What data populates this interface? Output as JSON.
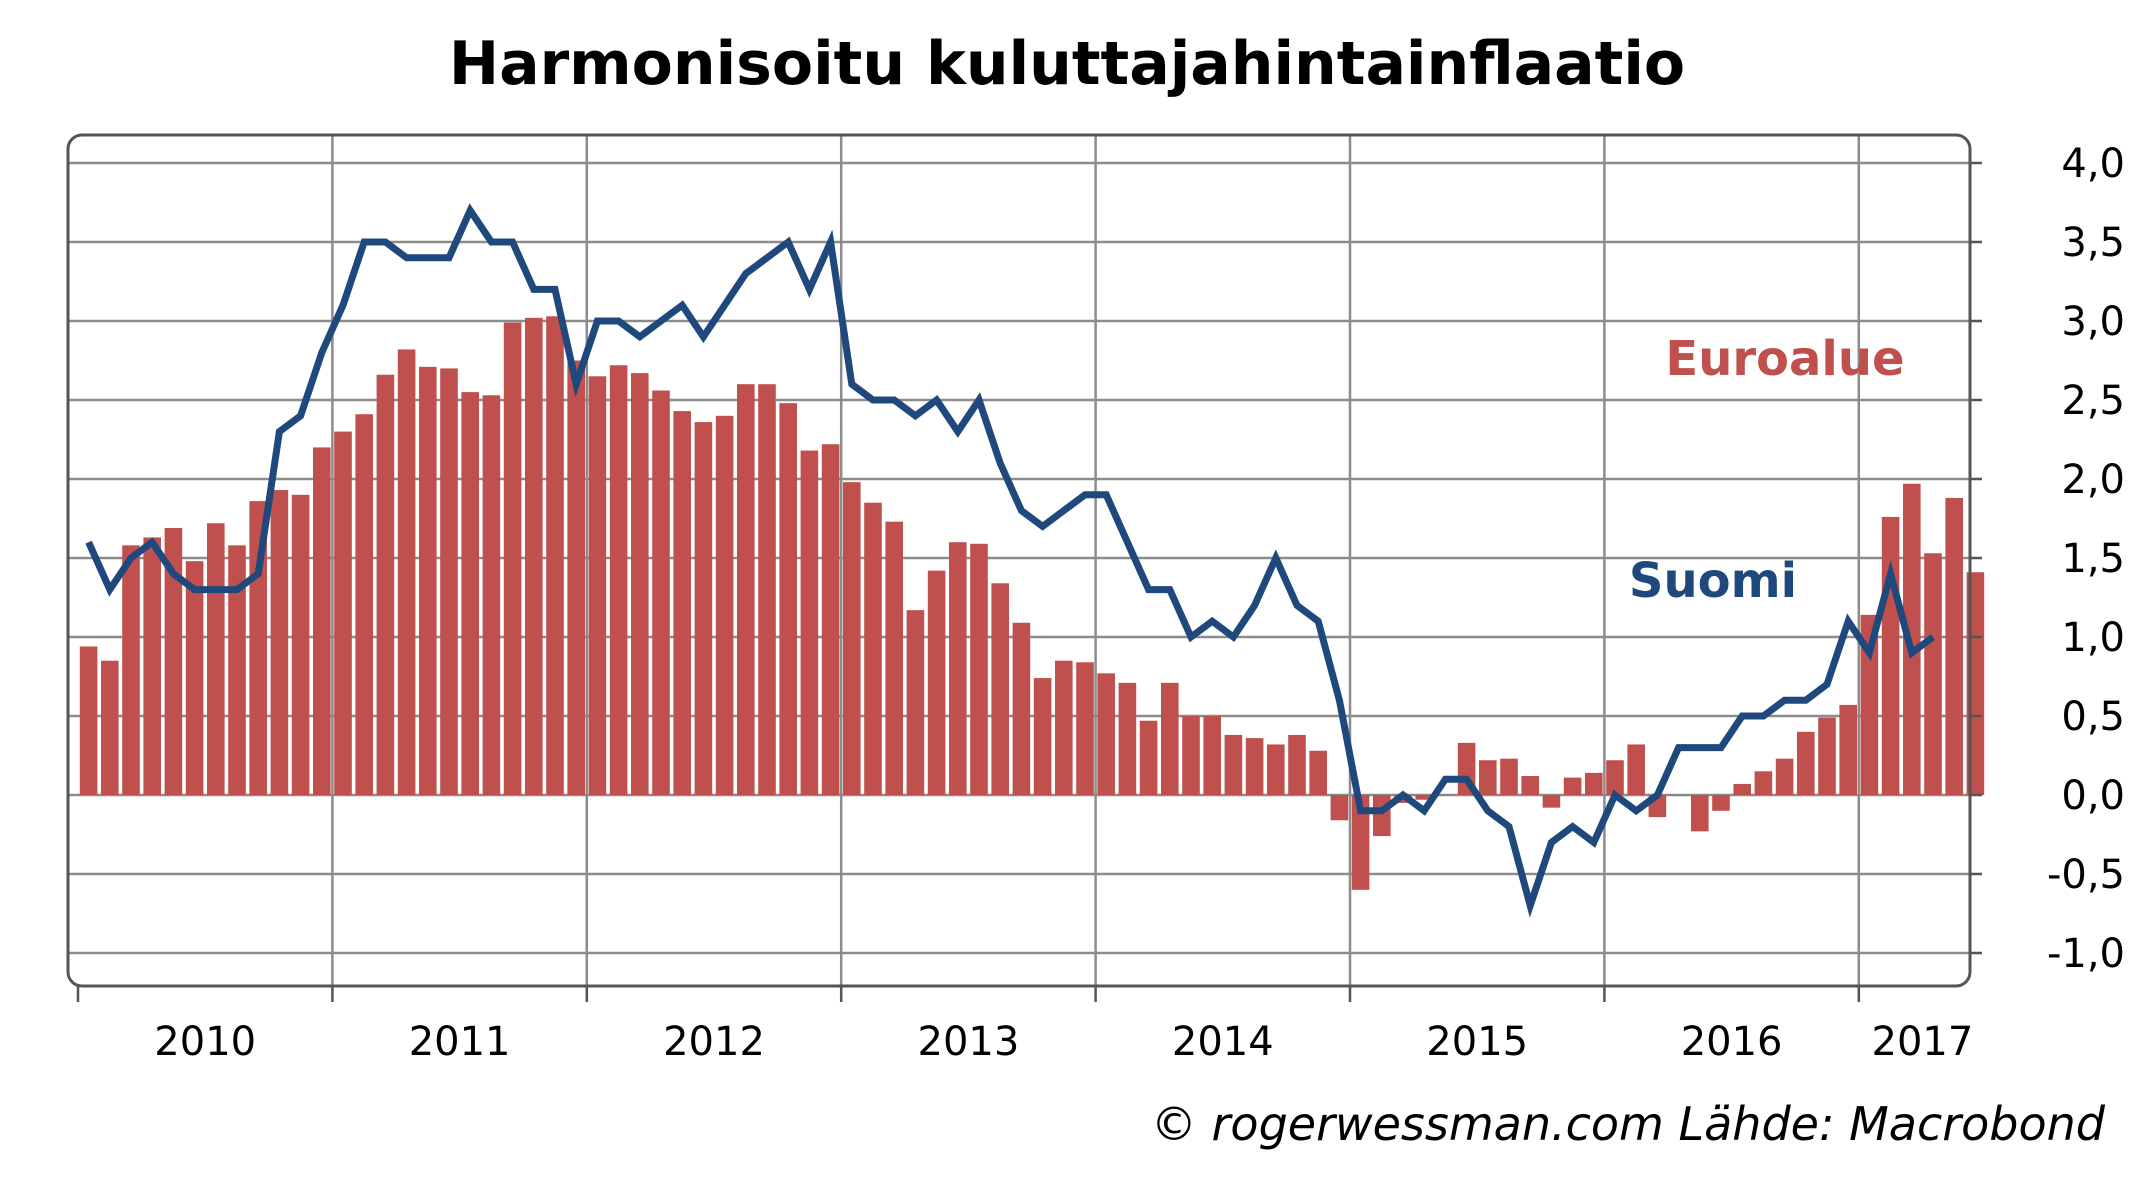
{
  "chart_data": {
    "type": "bar+line",
    "title": "Harmonisoitu kuluttajahintainflaatio",
    "credit": "© rogerwessman.com Lähde: Macrobond",
    "start": {
      "year": 2010,
      "month": 1
    },
    "year_labels": [
      "2010",
      "2011",
      "2012",
      "2013",
      "2014",
      "2015",
      "2016",
      "2017"
    ],
    "ylim": [
      -1.0,
      4.0
    ],
    "yticks": [
      {
        "value": 4.0,
        "label": "4,0"
      },
      {
        "value": 3.5,
        "label": "3,5"
      },
      {
        "value": 3.0,
        "label": "3,0"
      },
      {
        "value": 2.5,
        "label": "2,5"
      },
      {
        "value": 2.0,
        "label": "2,0"
      },
      {
        "value": 1.5,
        "label": "1,5"
      },
      {
        "value": 1.0,
        "label": "1,0"
      },
      {
        "value": 0.5,
        "label": "0,5"
      },
      {
        "value": 0.0,
        "label": "0,0"
      },
      {
        "value": -0.5,
        "label": "-0,5"
      },
      {
        "value": -1.0,
        "label": "-1,0"
      }
    ],
    "grid": true,
    "series": [
      {
        "name": "Euroalue",
        "type": "bar",
        "color": "#c0504d",
        "values": [
          0.94,
          0.85,
          1.58,
          1.63,
          1.69,
          1.48,
          1.72,
          1.58,
          1.86,
          1.93,
          1.9,
          2.2,
          2.3,
          2.41,
          2.66,
          2.82,
          2.71,
          2.7,
          2.55,
          2.53,
          2.99,
          3.02,
          3.03,
          2.75,
          2.65,
          2.72,
          2.67,
          2.56,
          2.43,
          2.36,
          2.4,
          2.6,
          2.6,
          2.48,
          2.18,
          2.22,
          1.98,
          1.85,
          1.73,
          1.17,
          1.42,
          1.6,
          1.59,
          1.34,
          1.09,
          0.74,
          0.85,
          0.84,
          0.77,
          0.71,
          0.47,
          0.71,
          0.5,
          0.5,
          0.38,
          0.36,
          0.32,
          0.38,
          0.28,
          -0.16,
          -0.6,
          -0.26,
          -0.05,
          -0.03,
          0.0,
          0.33,
          0.22,
          0.23,
          0.12,
          -0.08,
          0.11,
          0.14,
          0.22,
          0.32,
          -0.14,
          0.0,
          -0.23,
          -0.1,
          0.07,
          0.15,
          0.23,
          0.4,
          0.49,
          0.57,
          1.14,
          1.76,
          1.97,
          1.53,
          1.88,
          1.41
        ]
      },
      {
        "name": "Suomi",
        "type": "line",
        "color": "#1f497d",
        "values": [
          1.6,
          1.3,
          1.5,
          1.6,
          1.4,
          1.3,
          1.3,
          1.3,
          1.4,
          2.3,
          2.4,
          2.8,
          3.1,
          3.5,
          3.5,
          3.4,
          3.4,
          3.4,
          3.7,
          3.5,
          3.5,
          3.2,
          3.2,
          2.6,
          3.0,
          3.0,
          2.9,
          3.0,
          3.1,
          2.9,
          3.1,
          3.3,
          3.4,
          3.5,
          3.2,
          3.5,
          2.6,
          2.5,
          2.5,
          2.4,
          2.5,
          2.3,
          2.5,
          2.1,
          1.8,
          1.7,
          1.8,
          1.9,
          1.9,
          1.6,
          1.3,
          1.3,
          1.0,
          1.1,
          1.0,
          1.2,
          1.5,
          1.2,
          1.1,
          0.6,
          -0.1,
          -0.1,
          0.0,
          -0.1,
          0.1,
          0.1,
          -0.1,
          -0.2,
          -0.7,
          -0.3,
          -0.2,
          -0.3,
          0.0,
          -0.1,
          0.0,
          0.3,
          0.3,
          0.3,
          0.5,
          0.5,
          0.6,
          0.6,
          0.7,
          1.1,
          0.9,
          1.4,
          0.9,
          1.0
        ]
      }
    ]
  }
}
